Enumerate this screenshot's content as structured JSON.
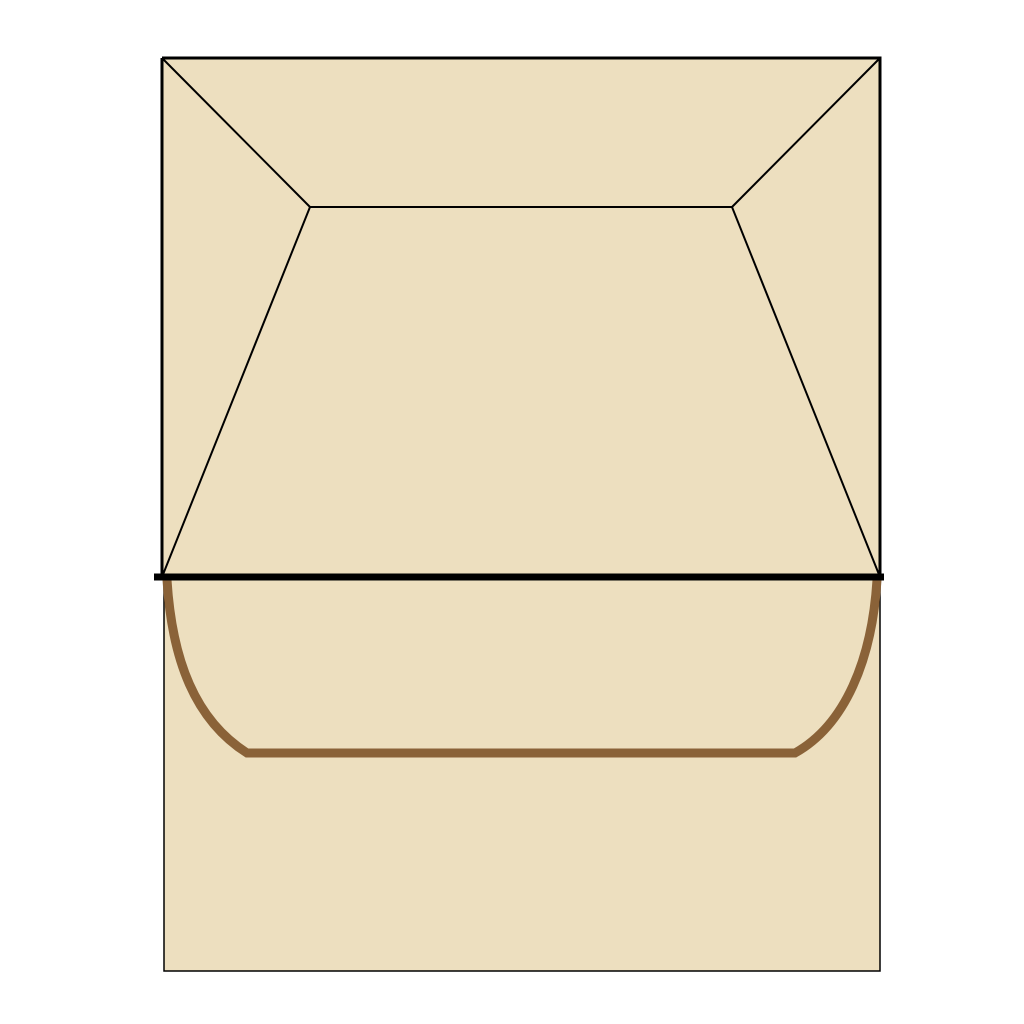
{
  "diagram": {
    "kind": "box-front-view-diagram",
    "colors": {
      "background": "#ffffff",
      "panel_fill": "#EDDFBF",
      "outline": "#000000",
      "rim_curve": "#8A6238"
    },
    "labels": []
  }
}
